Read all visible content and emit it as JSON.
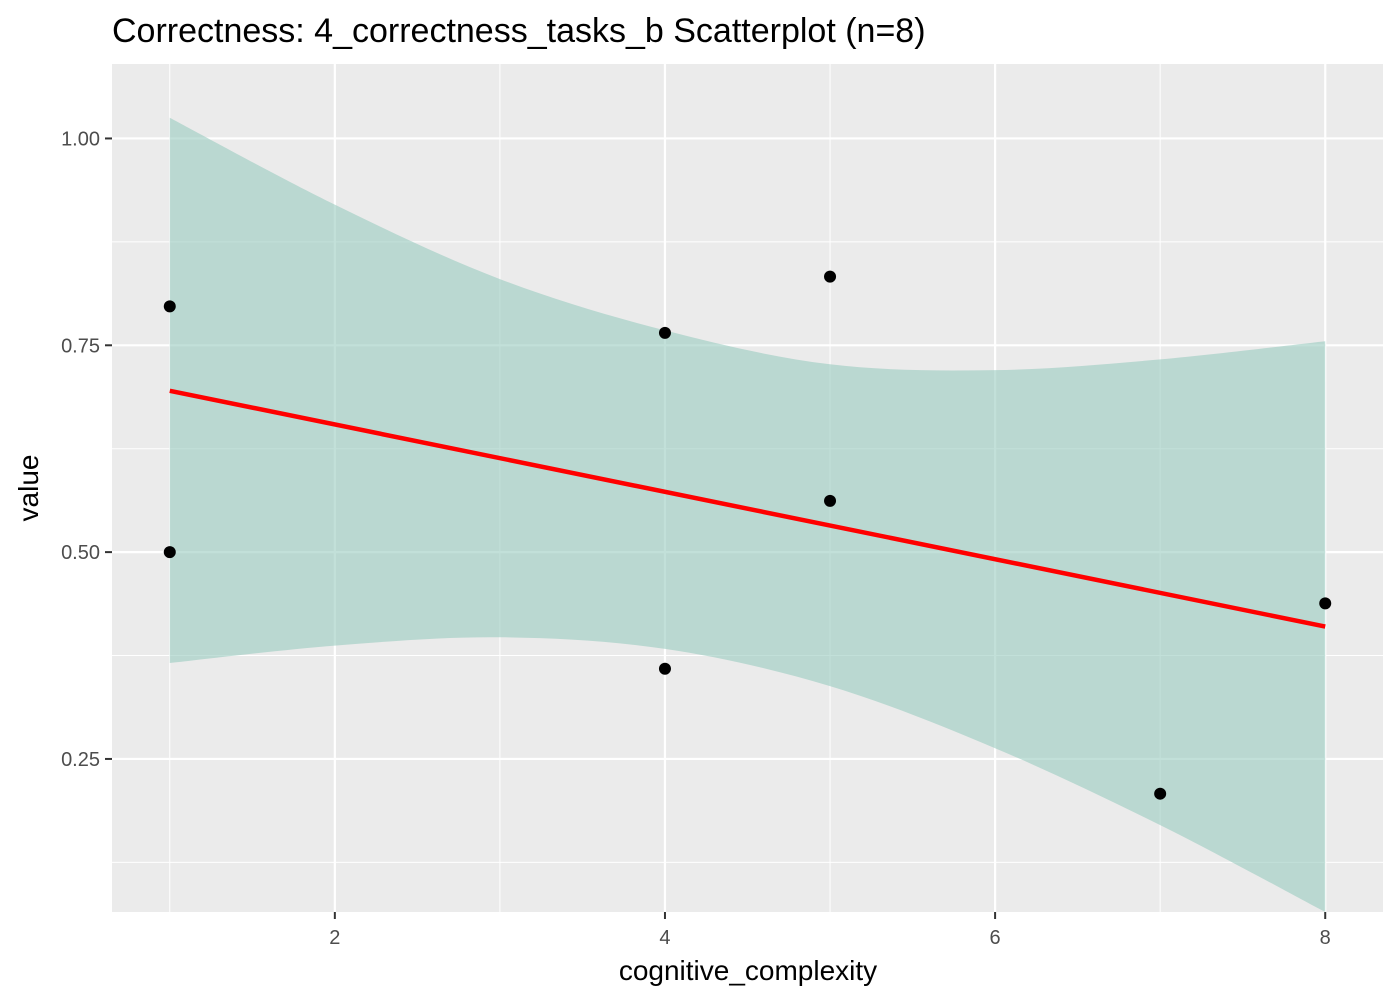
{
  "chart_data": {
    "type": "scatter",
    "title": "Correctness: 4_correctness_tasks_b Scatterplot (n=8)",
    "xlabel": "cognitive_complexity",
    "ylabel": "value",
    "xlim": [
      0.65,
      8.35
    ],
    "ylim": [
      0.065,
      1.09
    ],
    "x_ticks": [
      2,
      4,
      6,
      8
    ],
    "x_tick_labels": [
      "2",
      "4",
      "6",
      "8"
    ],
    "y_ticks": [
      0.25,
      0.5,
      0.75,
      1.0
    ],
    "y_tick_labels": [
      "0.25",
      "0.50",
      "0.75",
      "1.00"
    ],
    "grid": true,
    "points": [
      {
        "x": 1,
        "y": 0.797
      },
      {
        "x": 1,
        "y": 0.5
      },
      {
        "x": 4,
        "y": 0.765
      },
      {
        "x": 4,
        "y": 0.359
      },
      {
        "x": 5,
        "y": 0.833
      },
      {
        "x": 5,
        "y": 0.562
      },
      {
        "x": 7,
        "y": 0.208
      },
      {
        "x": 8,
        "y": 0.438
      }
    ],
    "regression_line": {
      "x": [
        1,
        8
      ],
      "y": [
        0.695,
        0.41
      ]
    },
    "confidence_band": {
      "x": [
        1,
        2,
        3,
        4,
        5,
        6,
        7,
        8
      ],
      "upper": [
        1.025,
        0.92,
        0.83,
        0.768,
        0.727,
        0.72,
        0.733,
        0.755
      ],
      "lower": [
        0.366,
        0.387,
        0.397,
        0.383,
        0.338,
        0.263,
        0.17,
        0.065
      ]
    },
    "colors": {
      "panel_background": "#EBEBEB",
      "grid": "#FFFFFF",
      "points": "#000000",
      "line": "#FF0000",
      "band": "#99CCBF"
    }
  }
}
